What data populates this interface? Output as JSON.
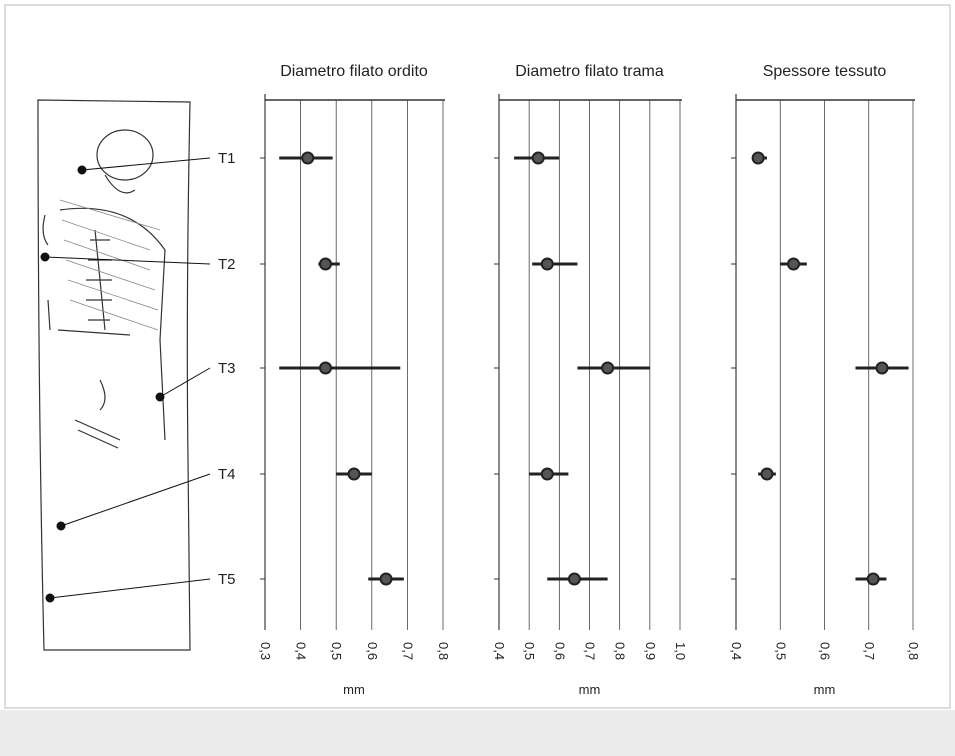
{
  "charts": [
    {
      "type": "errorbar",
      "title": "Diametro filato ordito",
      "xlabel": "mm",
      "categories": [
        "T1",
        "T2",
        "T3",
        "T4",
        "T5"
      ],
      "values": [
        0.42,
        0.47,
        0.47,
        0.55,
        0.64
      ],
      "low": [
        0.34,
        0.45,
        0.34,
        0.5,
        0.59
      ],
      "high": [
        0.49,
        0.51,
        0.68,
        0.6,
        0.69
      ],
      "xlim": [
        0.3,
        0.8
      ],
      "xticks": [
        {
          "value": 0.3,
          "label": "0,3"
        },
        {
          "value": 0.4,
          "label": "0,4"
        },
        {
          "value": 0.5,
          "label": "0,5"
        },
        {
          "value": 0.6,
          "label": "0,6"
        },
        {
          "value": 0.7,
          "label": "0,7"
        },
        {
          "value": 0.8,
          "label": "0,8"
        }
      ],
      "grid": true,
      "color": "#222222"
    },
    {
      "type": "errorbar",
      "title": "Diametro filato trama",
      "xlabel": "mm",
      "values": [
        0.53,
        0.56,
        0.76,
        0.56,
        0.65
      ],
      "low": [
        0.45,
        0.51,
        0.66,
        0.5,
        0.56
      ],
      "high": [
        0.6,
        0.66,
        0.9,
        0.63,
        0.76
      ],
      "xlim": [
        0.4,
        1.0
      ],
      "xticks": [
        {
          "value": 0.4,
          "label": "0,4"
        },
        {
          "value": 0.5,
          "label": "0,5"
        },
        {
          "value": 0.6,
          "label": "0,6"
        },
        {
          "value": 0.7,
          "label": "0,7"
        },
        {
          "value": 0.8,
          "label": "0,8"
        },
        {
          "value": 0.9,
          "label": "0,9"
        },
        {
          "value": 1.0,
          "label": "1,0"
        }
      ],
      "grid": true,
      "color": "#222222"
    },
    {
      "type": "errorbar",
      "title": "Spessore tessuto",
      "xlabel": "mm",
      "values": [
        0.45,
        0.53,
        0.73,
        0.47,
        0.71
      ],
      "low": [
        0.44,
        0.5,
        0.67,
        0.45,
        0.67
      ],
      "high": [
        0.47,
        0.56,
        0.79,
        0.49,
        0.74
      ],
      "xlim": [
        0.4,
        0.8
      ],
      "xticks": [
        {
          "value": 0.4,
          "label": "0,4"
        },
        {
          "value": 0.5,
          "label": "0,5"
        },
        {
          "value": 0.6,
          "label": "0,6"
        },
        {
          "value": 0.7,
          "label": "0,7"
        },
        {
          "value": 0.8,
          "label": "0,8"
        }
      ],
      "grid": true,
      "color": "#222222"
    }
  ]
}
